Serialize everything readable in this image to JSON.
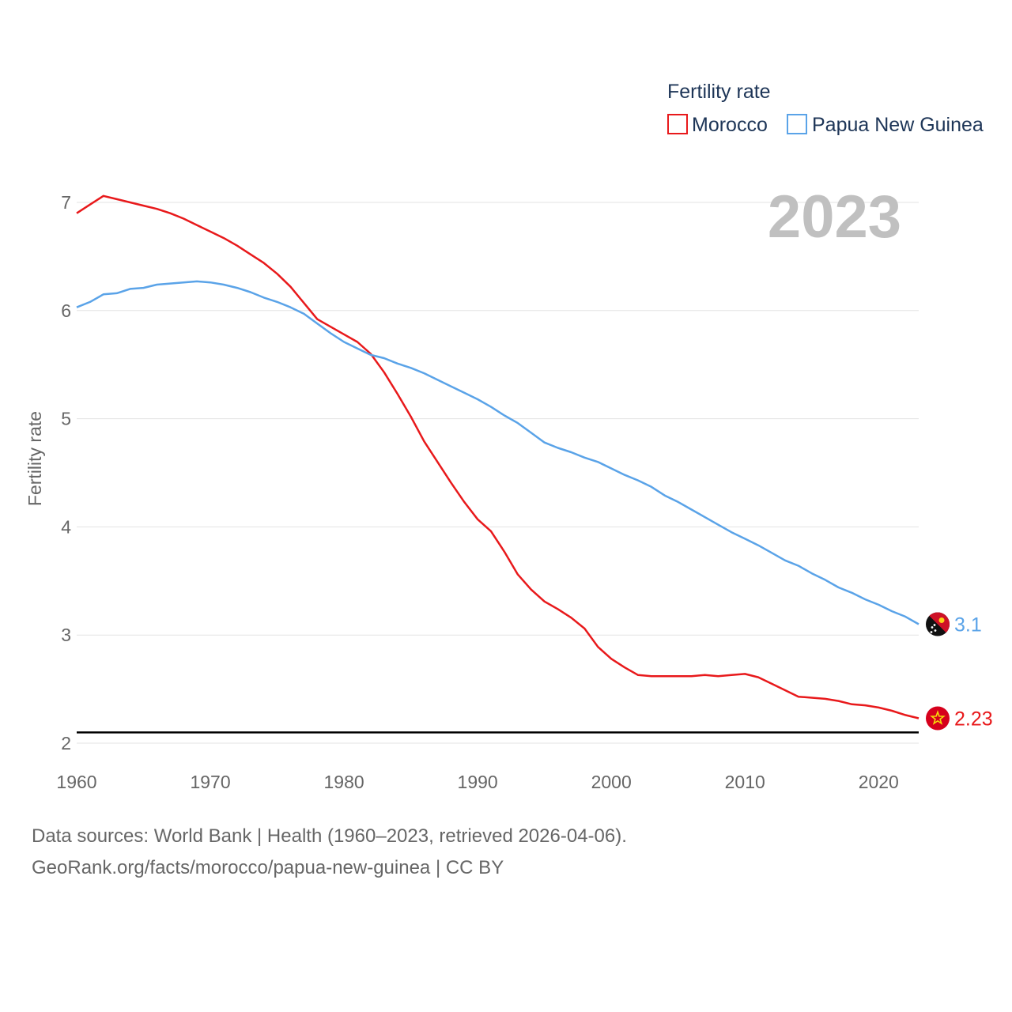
{
  "chart_data": {
    "type": "line",
    "title": "",
    "xlabel": "",
    "ylabel": "Fertility rate",
    "legend_title": "Fertility rate",
    "year_label": "2023",
    "xlim": [
      1960,
      2023
    ],
    "ylim": [
      2,
      7
    ],
    "x_ticks": [
      1960,
      1970,
      1980,
      1990,
      2000,
      2010,
      2020
    ],
    "y_ticks": [
      2,
      3,
      4,
      5,
      6,
      7
    ],
    "reference_line": 2.1,
    "x": [
      1960,
      1961,
      1962,
      1963,
      1964,
      1965,
      1966,
      1967,
      1968,
      1969,
      1970,
      1971,
      1972,
      1973,
      1974,
      1975,
      1976,
      1977,
      1978,
      1979,
      1980,
      1981,
      1982,
      1983,
      1984,
      1985,
      1986,
      1987,
      1988,
      1989,
      1990,
      1991,
      1992,
      1993,
      1994,
      1995,
      1996,
      1997,
      1998,
      1999,
      2000,
      2001,
      2002,
      2003,
      2004,
      2005,
      2006,
      2007,
      2008,
      2009,
      2010,
      2011,
      2012,
      2013,
      2014,
      2015,
      2016,
      2017,
      2018,
      2019,
      2020,
      2021,
      2022,
      2023
    ],
    "series": [
      {
        "name": "Morocco",
        "color": "#e8191b",
        "end_label": "2.23",
        "flag": "morocco-flag-icon",
        "values": [
          6.9,
          6.98,
          7.06,
          7.03,
          7.0,
          6.97,
          6.94,
          6.9,
          6.85,
          6.79,
          6.73,
          6.67,
          6.6,
          6.52,
          6.44,
          6.34,
          6.22,
          6.07,
          5.92,
          5.85,
          5.78,
          5.71,
          5.6,
          5.43,
          5.23,
          5.02,
          4.79,
          4.6,
          4.41,
          4.23,
          4.07,
          3.96,
          3.77,
          3.56,
          3.42,
          3.31,
          3.24,
          3.16,
          3.06,
          2.89,
          2.78,
          2.7,
          2.63,
          2.62,
          2.62,
          2.62,
          2.62,
          2.63,
          2.62,
          2.63,
          2.64,
          2.61,
          2.55,
          2.49,
          2.43,
          2.42,
          2.41,
          2.39,
          2.36,
          2.35,
          2.33,
          2.3,
          2.26,
          2.23
        ]
      },
      {
        "name": "Papua New Guinea",
        "color": "#5aa3e8",
        "end_label": "3.1",
        "flag": "papua-new-guinea-flag-icon",
        "values": [
          6.03,
          6.08,
          6.15,
          6.16,
          6.2,
          6.21,
          6.24,
          6.25,
          6.26,
          6.27,
          6.26,
          6.24,
          6.21,
          6.17,
          6.12,
          6.08,
          6.03,
          5.97,
          5.88,
          5.79,
          5.71,
          5.65,
          5.59,
          5.56,
          5.51,
          5.47,
          5.42,
          5.36,
          5.3,
          5.24,
          5.18,
          5.11,
          5.03,
          4.96,
          4.87,
          4.78,
          4.73,
          4.69,
          4.64,
          4.6,
          4.54,
          4.48,
          4.43,
          4.37,
          4.29,
          4.23,
          4.16,
          4.09,
          4.02,
          3.95,
          3.89,
          3.83,
          3.76,
          3.69,
          3.64,
          3.57,
          3.51,
          3.44,
          3.39,
          3.33,
          3.28,
          3.22,
          3.17,
          3.1
        ]
      }
    ]
  },
  "footer": {
    "line1": "Data sources: World Bank | Health (1960–2023, retrieved 2026-04-06).",
    "line2": "GeoRank.org/facts/morocco/papua-new-guinea | CC BY"
  }
}
